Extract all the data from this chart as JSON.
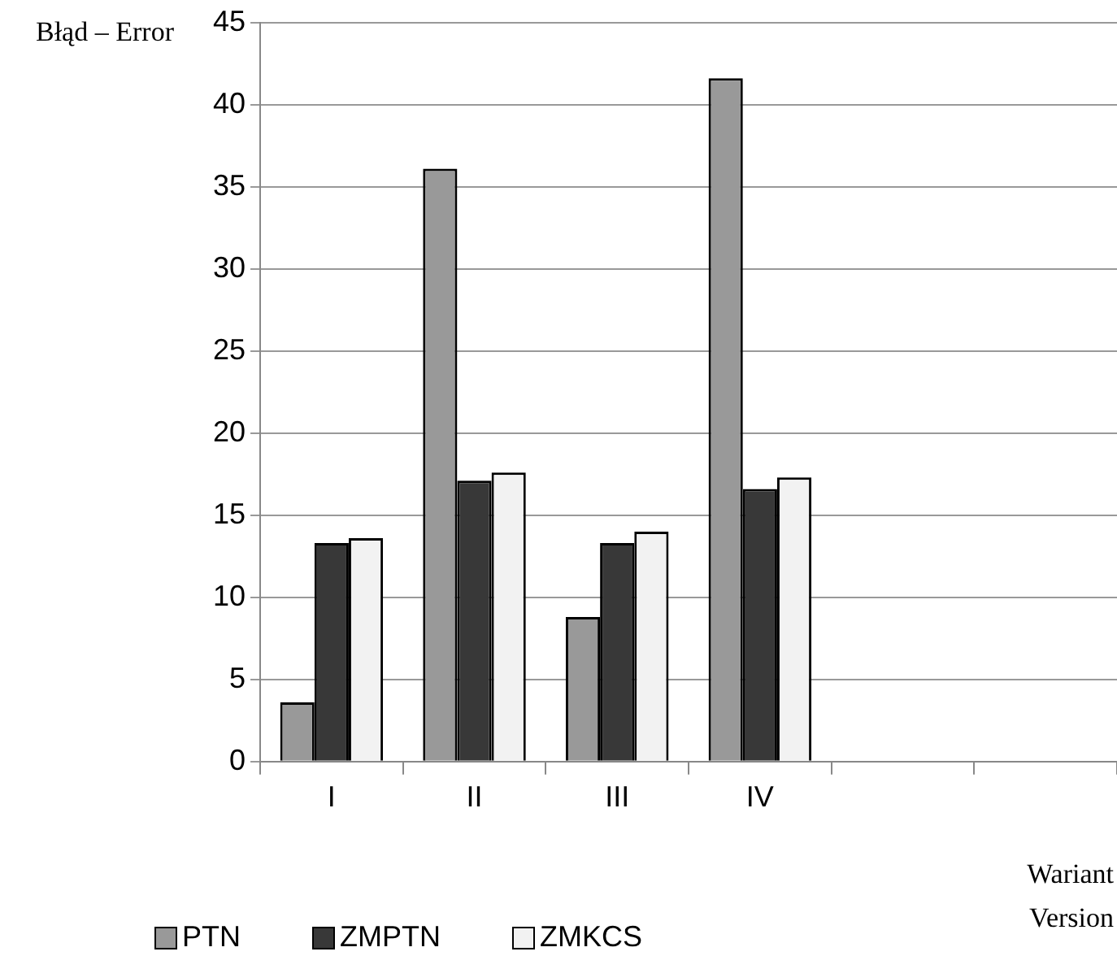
{
  "chart_data": {
    "type": "bar",
    "ylabel": "Błąd – Error",
    "xlabel": "Wariant\nVersion",
    "categories": [
      "I",
      "II",
      "III",
      "IV",
      null,
      null
    ],
    "series": [
      {
        "name": "PTN",
        "color": "#999999",
        "values": [
          3.6,
          36.1,
          8.8,
          41.6,
          null,
          null
        ]
      },
      {
        "name": "ZMPTN",
        "color": "#383838",
        "values": [
          13.3,
          17.1,
          13.3,
          16.6,
          null,
          null
        ]
      },
      {
        "name": "ZMKCS",
        "color": "#f2f2f2",
        "values": [
          13.6,
          17.6,
          14.0,
          17.3,
          null,
          null
        ]
      }
    ],
    "ylim": [
      0,
      45
    ],
    "yticks": [
      0,
      5,
      10,
      15,
      20,
      25,
      30,
      35,
      40,
      45
    ],
    "grid": "y",
    "legend": "bottom"
  }
}
